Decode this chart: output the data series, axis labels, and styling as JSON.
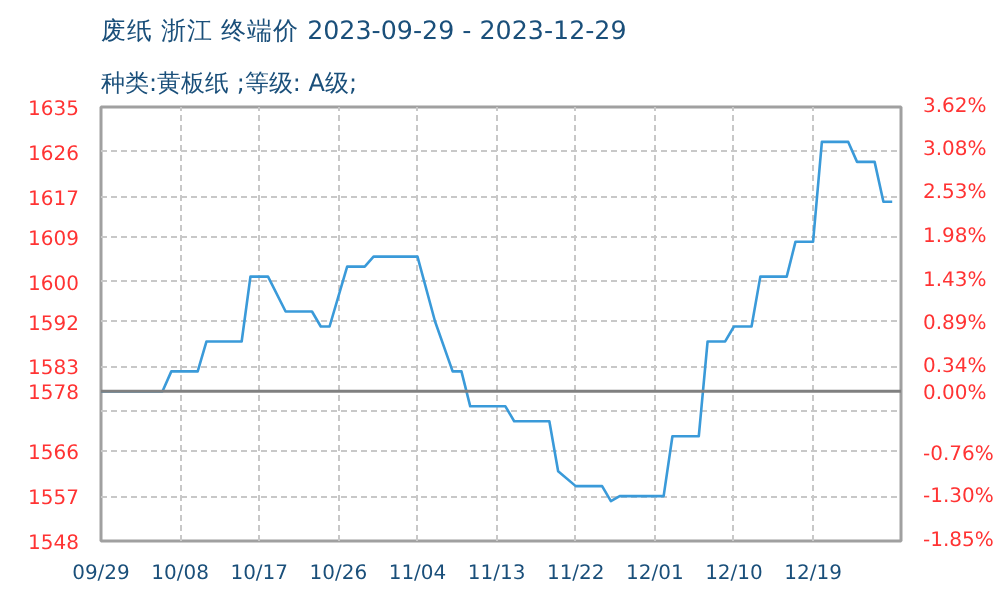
{
  "chart_data": {
    "type": "line",
    "title": "废纸 浙江 终端价 2023-09-29 - 2023-12-29",
    "subtitle": "种类:黄板纸 ;等级: A级;",
    "x": [
      "2023-09-29",
      "2023-10-06",
      "2023-10-07",
      "2023-10-10",
      "2023-10-11",
      "2023-10-15",
      "2023-10-16",
      "2023-10-18",
      "2023-10-20",
      "2023-10-23",
      "2023-10-24",
      "2023-10-25",
      "2023-10-27",
      "2023-10-29",
      "2023-10-30",
      "2023-11-04",
      "2023-11-06",
      "2023-11-08",
      "2023-11-09",
      "2023-11-10",
      "2023-11-14",
      "2023-11-15",
      "2023-11-19",
      "2023-11-20",
      "2023-11-22",
      "2023-11-25",
      "2023-11-26",
      "2023-11-27",
      "2023-12-02",
      "2023-12-03",
      "2023-12-06",
      "2023-12-07",
      "2023-12-09",
      "2023-12-10",
      "2023-12-12",
      "2023-12-13",
      "2023-12-16",
      "2023-12-17",
      "2023-12-19",
      "2023-12-20",
      "2023-12-23",
      "2023-12-24",
      "2023-12-26",
      "2023-12-27",
      "2023-12-28"
    ],
    "series": [
      {
        "color": "#3a9ad9",
        "values": [
          1578,
          1578,
          1582,
          1582,
          1588,
          1588,
          1601,
          1601,
          1594,
          1594,
          1591,
          1591,
          1603,
          1603,
          1605,
          1605,
          1592,
          1582,
          1582,
          1575,
          1575,
          1572,
          1572,
          1562,
          1559,
          1559,
          1556,
          1557,
          1557,
          1569,
          1569,
          1588,
          1588,
          1591,
          1591,
          1601,
          1601,
          1608,
          1608,
          1628,
          1628,
          1624,
          1624,
          1616,
          1616
        ]
      }
    ],
    "xlim": [
      "2023-09-29",
      "2023-12-29"
    ],
    "xticks": [
      {
        "value": "2023-09-29",
        "label": "09/29"
      },
      {
        "value": "2023-10-08",
        "label": "10/08"
      },
      {
        "value": "2023-10-17",
        "label": "10/17"
      },
      {
        "value": "2023-10-26",
        "label": "10/26"
      },
      {
        "value": "2023-11-04",
        "label": "11/04"
      },
      {
        "value": "2023-11-13",
        "label": "11/13"
      },
      {
        "value": "2023-11-22",
        "label": "11/22"
      },
      {
        "value": "2023-12-01",
        "label": "12/01"
      },
      {
        "value": "2023-12-10",
        "label": "12/10"
      },
      {
        "value": "2023-12-19",
        "label": "12/19"
      }
    ],
    "ylim": [
      1548,
      1635
    ],
    "yticks": [
      1548,
      1557,
      1566,
      {
        "value": 1574,
        "label": null
      },
      1578,
      1583,
      1592,
      1600,
      1609,
      1617,
      1626,
      1635
    ],
    "y2lim": [
      -1.85,
      3.62
    ],
    "y2ticks": [
      {
        "value": -1.85,
        "label": "-1.85%"
      },
      {
        "value": -1.3,
        "label": "-1.30%"
      },
      {
        "value": -0.76,
        "label": "-0.76%"
      },
      {
        "value": 0,
        "label": "0.00%"
      },
      {
        "value": 0.34,
        "label": "0.34%"
      },
      {
        "value": 0.89,
        "label": "0.89%"
      },
      {
        "value": 1.43,
        "label": "1.43%"
      },
      {
        "value": 1.98,
        "label": "1.98%"
      },
      {
        "value": 2.53,
        "label": "2.53%"
      },
      {
        "value": 3.08,
        "label": "3.08%"
      },
      {
        "value": 3.62,
        "label": "3.62%"
      }
    ],
    "ref_lines": [
      {
        "axis": "y",
        "value": 1578,
        "color": "#808080"
      }
    ],
    "grid": true
  }
}
